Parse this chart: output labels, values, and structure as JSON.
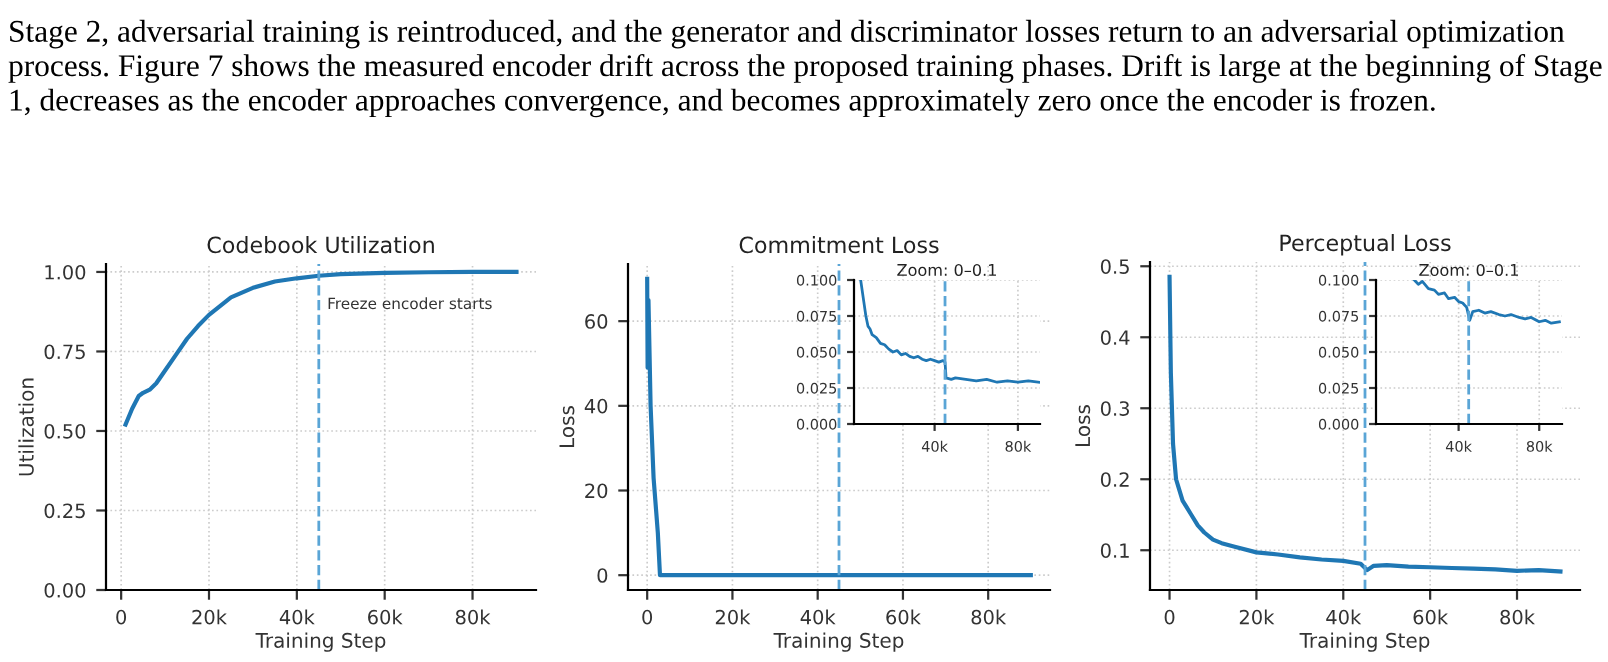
{
  "chart_data": [
    {
      "type": "other",
      "annotations": [
        "Stage 2, adversarial training is reintroduced, and the generator and discriminator losses return to an adversarial optimization process. Figure 7 shows the measured encoder drift across the proposed training phases. Drift is large at the beginning of Stage 1, decreases as the encoder approaches convergence, and becomes approximately zero once the encoder is frozen."
      ]
    },
    {
      "type": "line",
      "title": "Codebook Utilization",
      "xlabel": "Training Step",
      "ylabel": "Utilization",
      "grid": true,
      "marker": "none",
      "line_style": "solid",
      "xlim": [
        -3450,
        94450
      ],
      "xticks": [
        0,
        {
          "value": 20000,
          "label": "20k"
        },
        {
          "value": 40000,
          "label": "40k"
        },
        {
          "value": 60000,
          "label": "60k"
        },
        {
          "value": 80000,
          "label": "80k"
        }
      ],
      "ylim": [
        0,
        1.025
      ],
      "yticks": [
        {
          "value": 0,
          "label": "0.00"
        },
        {
          "value": 0.25,
          "label": "0.25"
        },
        {
          "value": 0.5,
          "label": "0.50"
        },
        {
          "value": 0.75,
          "label": "0.75"
        },
        {
          "value": 1,
          "label": "1.00"
        }
      ],
      "ref_lines": [
        {
          "axis": "x",
          "value": 45000,
          "label": "Freeze encoder starts",
          "color": "#5aa5d6",
          "line_style": "dashed"
        }
      ],
      "series": [
        {
          "color": "#1f77b4",
          "x": [
            1000,
            2500,
            4000,
            5000,
            6500,
            8000,
            10000,
            12500,
            15000,
            17500,
            20000,
            25000,
            30000,
            35000,
            40000,
            45000,
            50000,
            60000,
            70000,
            80000,
            90000
          ],
          "values": [
            0.52,
            0.57,
            0.61,
            0.62,
            0.63,
            0.65,
            0.69,
            0.74,
            0.79,
            0.83,
            0.865,
            0.92,
            0.95,
            0.97,
            0.98,
            0.988,
            0.993,
            0.997,
            0.999,
            1.0,
            1.0
          ]
        }
      ]
    },
    {
      "type": "line",
      "title": "Commitment Loss",
      "xlabel": "Training Step",
      "ylabel": "Loss",
      "grid": true,
      "marker": "none",
      "line_style": "solid",
      "xlim": [
        -4500,
        94500
      ],
      "xticks": [
        0,
        {
          "value": 20000,
          "label": "20k"
        },
        {
          "value": 40000,
          "label": "40k"
        },
        {
          "value": 60000,
          "label": "60k"
        },
        {
          "value": 80000,
          "label": "80k"
        }
      ],
      "ylim": [
        -3.5,
        73.5
      ],
      "yticks": [
        0,
        20,
        40,
        60
      ],
      "ref_lines": [
        {
          "axis": "x",
          "value": 45000,
          "color": "#5aa5d6",
          "line_style": "dashed"
        }
      ],
      "series": [
        {
          "color": "#1f77b4",
          "x": [
            0,
            100,
            300,
            800,
            1500,
            2500,
            3000,
            5000,
            45000,
            90000
          ],
          "values": [
            70,
            49,
            65,
            40,
            23,
            10,
            0,
            0,
            0,
            0
          ]
        }
      ]
    },
    {
      "type": "line",
      "title": "Zoom: 0–0.1",
      "grid": true,
      "marker": "none",
      "line_style": "solid",
      "xlim": [
        1300,
        90600
      ],
      "xticks": [
        {
          "value": 40000,
          "label": "40k"
        },
        {
          "value": 80000,
          "label": "80k"
        }
      ],
      "ylim": [
        0,
        0.1
      ],
      "yticks": [
        {
          "value": 0,
          "label": "0.000"
        },
        {
          "value": 0.025,
          "label": "0.025"
        },
        {
          "value": 0.05,
          "label": "0.050"
        },
        {
          "value": 0.075,
          "label": "0.075"
        },
        {
          "value": 0.1,
          "label": "0.100"
        }
      ],
      "ref_lines": [
        {
          "axis": "x",
          "value": 45000,
          "color": "#5aa5d6",
          "line_style": "dashed"
        }
      ],
      "series": [
        {
          "color": "#1f77b4",
          "x": [
            4500,
            6000,
            7000,
            8000,
            9000,
            10000,
            12000,
            14000,
            16000,
            18000,
            20000,
            22000,
            24000,
            26000,
            28000,
            30000,
            32000,
            34000,
            36000,
            38000,
            40000,
            42000,
            44000,
            45000,
            45500,
            48000,
            50000,
            55000,
            60000,
            65000,
            70000,
            75000,
            80000,
            85000,
            90000
          ],
          "values": [
            0.1,
            0.085,
            0.075,
            0.068,
            0.066,
            0.062,
            0.06,
            0.056,
            0.055,
            0.052,
            0.05,
            0.051,
            0.048,
            0.049,
            0.047,
            0.046,
            0.047,
            0.045,
            0.044,
            0.045,
            0.044,
            0.043,
            0.044,
            0.043,
            0.032,
            0.031,
            0.032,
            0.031,
            0.03,
            0.031,
            0.029,
            0.03,
            0.029,
            0.03,
            0.029
          ]
        }
      ]
    },
    {
      "type": "line",
      "title": "Perceptual Loss",
      "xlabel": "Training Step",
      "ylabel": "Loss",
      "grid": true,
      "marker": "none",
      "line_style": "solid",
      "xlim": [
        -4500,
        94500
      ],
      "xticks": [
        0,
        {
          "value": 20000,
          "label": "20k"
        },
        {
          "value": 40000,
          "label": "40k"
        },
        {
          "value": 60000,
          "label": "60k"
        },
        {
          "value": 80000,
          "label": "80k"
        }
      ],
      "ylim": [
        0.044,
        0.506
      ],
      "yticks": [
        0.1,
        0.2,
        0.3,
        0.4,
        0.5
      ],
      "ref_lines": [
        {
          "axis": "x",
          "value": 45000,
          "color": "#5aa5d6",
          "line_style": "dashed"
        }
      ],
      "series": [
        {
          "color": "#1f77b4",
          "x": [
            0,
            300,
            800,
            1500,
            2000,
            3000,
            4000,
            5000,
            6500,
            8000,
            10000,
            12000,
            15000,
            20000,
            25000,
            30000,
            35000,
            40000,
            44000,
            45500,
            47000,
            50000,
            55000,
            60000,
            65000,
            70000,
            75000,
            80000,
            85000,
            90000
          ],
          "values": [
            0.485,
            0.35,
            0.25,
            0.2,
            0.19,
            0.17,
            0.16,
            0.15,
            0.135,
            0.125,
            0.115,
            0.11,
            0.105,
            0.097,
            0.094,
            0.09,
            0.087,
            0.085,
            0.081,
            0.072,
            0.078,
            0.079,
            0.077,
            0.076,
            0.075,
            0.074,
            0.073,
            0.071,
            0.072,
            0.07
          ]
        }
      ]
    },
    {
      "type": "line",
      "title": "Zoom: 0–0.1",
      "grid": true,
      "marker": "none",
      "line_style": "solid",
      "xlim": [
        -1000,
        91300
      ],
      "xticks": [
        {
          "value": 40000,
          "label": "40k"
        },
        {
          "value": 80000,
          "label": "80k"
        }
      ],
      "ylim": [
        0,
        0.1
      ],
      "yticks": [
        {
          "value": 0,
          "label": "0.000"
        },
        {
          "value": 0.025,
          "label": "0.025"
        },
        {
          "value": 0.05,
          "label": "0.050"
        },
        {
          "value": 0.075,
          "label": "0.075"
        },
        {
          "value": 0.1,
          "label": "0.100"
        }
      ],
      "ref_lines": [
        {
          "axis": "x",
          "value": 45000,
          "color": "#5aa5d6",
          "line_style": "dashed"
        }
      ],
      "series": [
        {
          "color": "#1f77b4",
          "x": [
            18000,
            20000,
            22000,
            25000,
            28000,
            30000,
            33000,
            35000,
            38000,
            40000,
            42000,
            44000,
            45500,
            47000,
            50000,
            53000,
            56000,
            60000,
            63000,
            66000,
            70000,
            73000,
            76000,
            80000,
            83000,
            86000,
            90000
          ],
          "values": [
            0.1,
            0.097,
            0.099,
            0.094,
            0.093,
            0.09,
            0.091,
            0.087,
            0.088,
            0.085,
            0.084,
            0.081,
            0.072,
            0.078,
            0.079,
            0.077,
            0.078,
            0.076,
            0.075,
            0.076,
            0.074,
            0.073,
            0.074,
            0.071,
            0.072,
            0.07,
            0.071
          ]
        }
      ]
    }
  ]
}
